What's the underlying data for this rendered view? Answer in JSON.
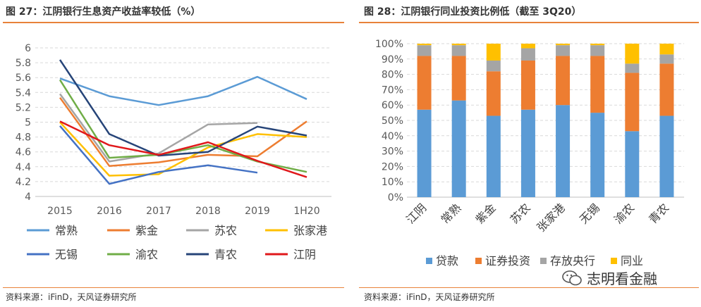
{
  "left": {
    "title": "图 27：江阴银行生息资产收益率较低（%）",
    "source": "资料来源：iFinD，天风证券研究所"
  },
  "right": {
    "title": "图 28：江阴银行同业投资比例低（截至 3Q20）",
    "source": "资料来源：iFinD，天风证券研究所"
  },
  "watermark": {
    "text": "志明看金融",
    "icon": "wechat-icon"
  },
  "chart_data": [
    {
      "type": "line",
      "categories": [
        "2015",
        "2016",
        "2017",
        "2018",
        "2019",
        "1H20"
      ],
      "ylim": [
        4,
        6
      ],
      "yticks": [
        "4",
        "4.2",
        "4.4",
        "4.6",
        "4.8",
        "5",
        "5.2",
        "5.4",
        "5.6",
        "5.8",
        "6"
      ],
      "grid": true,
      "legend_position": "bottom",
      "series": [
        {
          "name": "常熟",
          "color": "#5b9bd5",
          "values": [
            5.59,
            5.35,
            5.23,
            5.35,
            5.61,
            5.31
          ]
        },
        {
          "name": "紫金",
          "color": "#ed7d31",
          "values": [
            5.33,
            4.41,
            4.46,
            4.56,
            4.54,
            5.01
          ]
        },
        {
          "name": "苏农",
          "color": "#a5a5a5",
          "values": [
            5.38,
            4.47,
            4.58,
            4.97,
            4.99,
            null
          ]
        },
        {
          "name": "张家港",
          "color": "#ffc000",
          "values": [
            5.0,
            4.28,
            4.3,
            4.66,
            4.84,
            4.8
          ]
        },
        {
          "name": "无锡",
          "color": "#4472c4",
          "values": [
            4.95,
            4.17,
            4.33,
            4.42,
            4.32,
            null
          ]
        },
        {
          "name": "渝农",
          "color": "#70ad47",
          "values": [
            5.57,
            4.52,
            4.56,
            4.69,
            4.47,
            4.33
          ]
        },
        {
          "name": "青农",
          "color": "#264478",
          "values": [
            5.84,
            4.84,
            4.55,
            4.6,
            4.94,
            4.82
          ]
        },
        {
          "name": "江阴",
          "color": "#e0181b",
          "values": [
            5.01,
            4.69,
            4.56,
            4.73,
            4.48,
            4.26
          ]
        }
      ]
    },
    {
      "type": "bar",
      "stacked": true,
      "categories": [
        "江阴",
        "常熟",
        "紫金",
        "苏农",
        "张家港",
        "无锡",
        "渝农",
        "青农"
      ],
      "ylim": [
        0,
        100
      ],
      "yticks": [
        "0%",
        "10%",
        "20%",
        "30%",
        "40%",
        "50%",
        "60%",
        "70%",
        "80%",
        "90%",
        "100%"
      ],
      "legend_position": "bottom",
      "series": [
        {
          "name": "贷款",
          "color": "#5b9bd5",
          "values": [
            57,
            63,
            53,
            57,
            60,
            55,
            43,
            53
          ]
        },
        {
          "name": "证券投资",
          "color": "#ed7d31",
          "values": [
            35,
            29,
            29,
            32,
            32,
            37,
            38,
            34
          ]
        },
        {
          "name": "存放央行",
          "color": "#a5a5a5",
          "values": [
            7,
            7,
            7,
            8,
            7,
            7,
            6,
            6
          ]
        },
        {
          "name": "同业",
          "color": "#ffc000",
          "values": [
            1,
            1,
            11,
            3,
            1,
            1,
            13,
            7
          ]
        }
      ]
    }
  ]
}
